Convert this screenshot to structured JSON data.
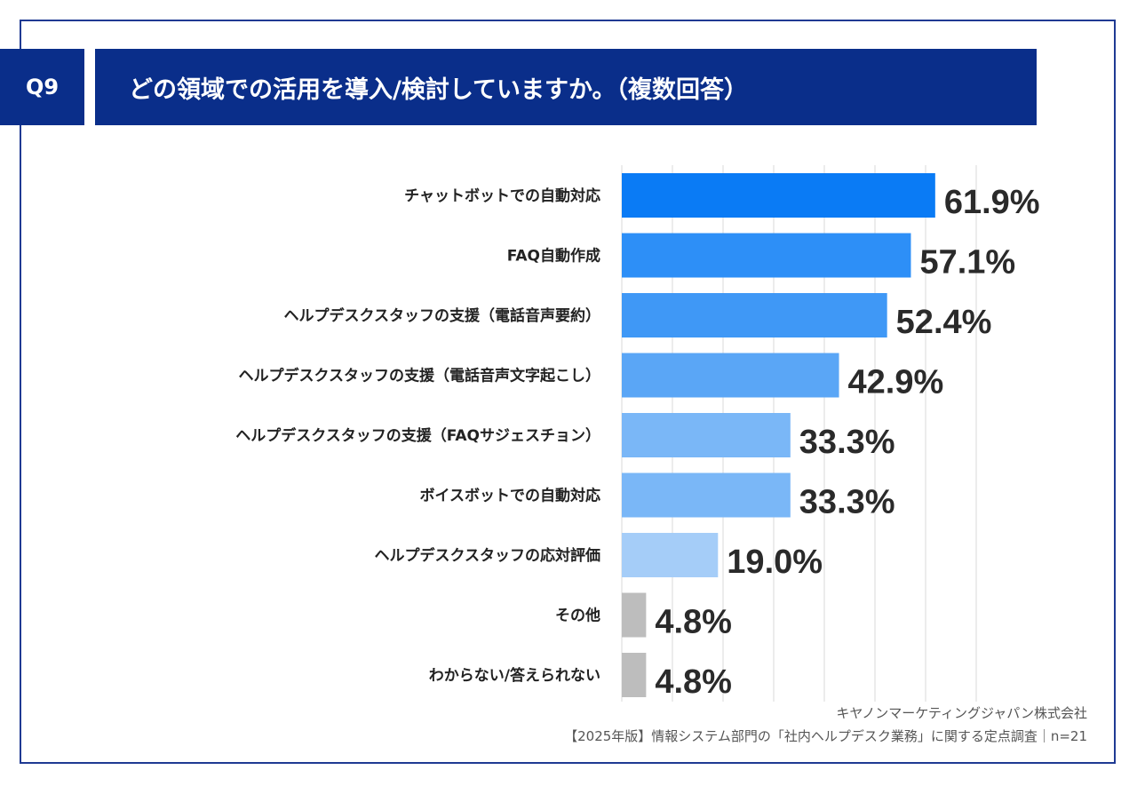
{
  "header": {
    "badge": "Q9",
    "title": "どの領域での活用を導入/検討していますか。（複数回答）"
  },
  "footer": {
    "company": "キヤノンマーケティングジャパン株式会社",
    "source": "【2025年版】情報システム部門の「社内ヘルプデスク業務」に関する定点調査｜n=21"
  },
  "chart_data": {
    "type": "bar",
    "orientation": "horizontal",
    "categories": [
      "チャットボットでの自動対応",
      "FAQ自動作成",
      "ヘルプデスクスタッフの支援（電話音声要約）",
      "ヘルプデスクスタッフの支援（電話音声文字起こし）",
      "ヘルプデスクスタッフの支援（FAQサジェスチョン）",
      "ボイスボットでの自動対応",
      "ヘルプデスクスタッフの応対評価",
      "その他",
      "わからない/答えられない"
    ],
    "values": [
      61.9,
      57.1,
      52.4,
      42.9,
      33.3,
      33.3,
      19.0,
      4.8,
      4.8
    ],
    "value_labels": [
      "61.9%",
      "57.1%",
      "52.4%",
      "42.9%",
      "33.3%",
      "33.3%",
      "19.0%",
      "4.8%",
      "4.8%"
    ],
    "colors": [
      "#0a7bf5",
      "#2d8ff7",
      "#3f98f6",
      "#5aa6f6",
      "#7ab7f7",
      "#7ab7f7",
      "#a5cdf8",
      "#bdbdbd",
      "#bdbdbd"
    ],
    "xlim": [
      0,
      70
    ],
    "grid": true
  }
}
